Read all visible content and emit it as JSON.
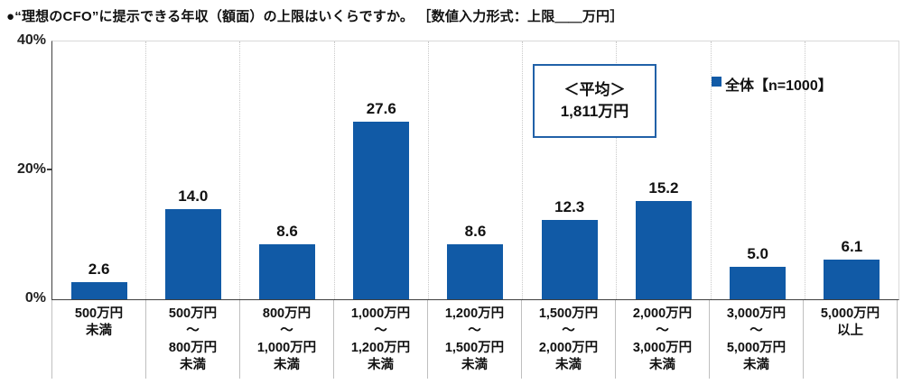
{
  "title": "●“理想のCFO”に提示できる年収（額面）の上限はいくらですか。 ［数値入力形式：上限＿＿万円］",
  "legend": {
    "label": "全体【n=1000】"
  },
  "average_box": {
    "line1": "＜平均＞",
    "line2": "1,811万円"
  },
  "colors": {
    "bar": "#115aa6",
    "box_border": "#2161a8",
    "axis": "#404040",
    "grid": "#c9c9c9",
    "separator": "#bfbfbf"
  },
  "chart_data": {
    "type": "bar",
    "title": "“理想のCFO”に提示できる年収（額面）の上限はいくらですか。［数値入力形式：上限＿＿万円］",
    "series_name": "全体【n=1000】",
    "n": 1000,
    "categories": [
      "500万円\n未満",
      "500万円\n～\n800万円\n未満",
      "800万円\n～\n1,000万円\n未満",
      "1,000万円\n～\n1,200万円\n未満",
      "1,200万円\n～\n1,500万円\n未満",
      "1,500万円\n～\n2,000万円\n未満",
      "2,000万円\n～\n3,000万円\n未満",
      "3,000万円\n～\n5,000万円\n未満",
      "5,000万円\n以上"
    ],
    "values": [
      2.6,
      14.0,
      8.6,
      27.6,
      8.6,
      12.3,
      15.2,
      5.0,
      6.1
    ],
    "value_labels": [
      "2.6",
      "14.0",
      "8.6",
      "27.6",
      "8.6",
      "12.3",
      "15.2",
      "5.0",
      "6.1"
    ],
    "xlabel": "",
    "ylabel": "",
    "ylim": [
      0,
      40
    ],
    "yticks": [
      {
        "label": "40%",
        "value": 40
      },
      {
        "label": "20%",
        "value": 20
      },
      {
        "label": "0%",
        "value": 0
      }
    ],
    "grid": "vertical-dotted-between-categories",
    "legend_position": "top-right-inside",
    "annotations": [
      "＜平均＞ 1,811万円"
    ]
  }
}
